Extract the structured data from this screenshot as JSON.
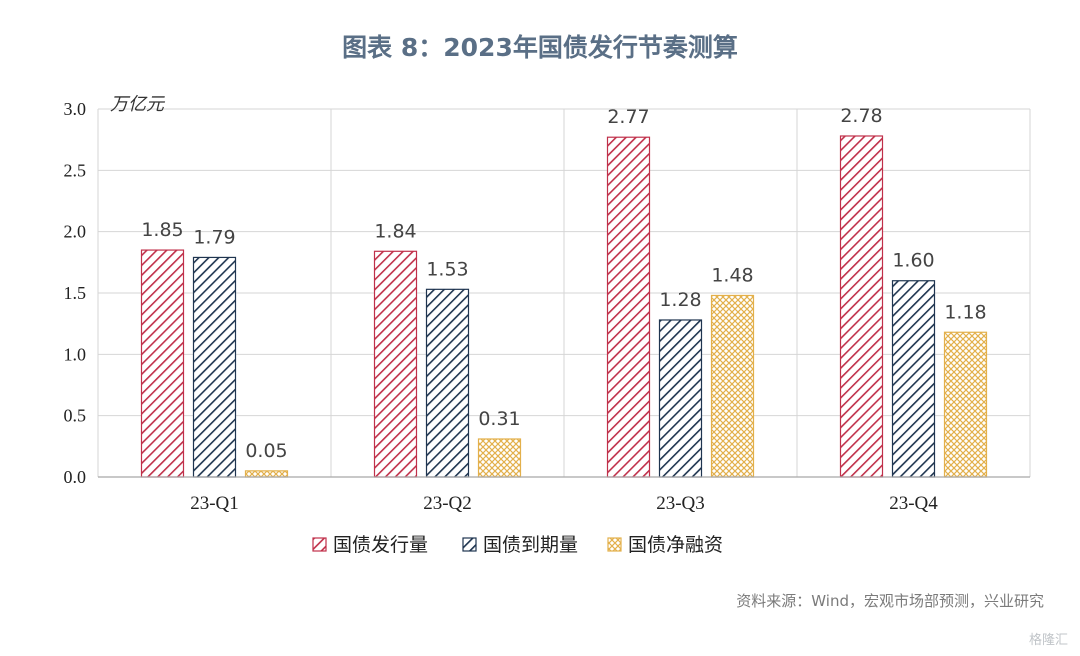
{
  "title": "图表 8：2023年国债发行节奏测算",
  "source": "资料来源：Wind，宏观市场部预测，兴业研究",
  "watermark": "格隆汇",
  "chart_data": {
    "type": "bar",
    "unit_label": "万亿元",
    "categories": [
      "23-Q1",
      "23-Q2",
      "23-Q3",
      "23-Q4"
    ],
    "series": [
      {
        "name": "国债发行量",
        "values": [
          1.85,
          1.84,
          2.77,
          2.78
        ],
        "color": "#c0304a",
        "pattern": "diagonal-stripes-red"
      },
      {
        "name": "国债到期量",
        "values": [
          1.79,
          1.53,
          1.28,
          1.6
        ],
        "color": "#1f3550",
        "pattern": "diagonal-stripes-navy"
      },
      {
        "name": "国债净融资",
        "values": [
          0.05,
          0.31,
          1.48,
          1.18
        ],
        "color": "#e3b04b",
        "pattern": "crosshatch-gold"
      }
    ],
    "y_ticks": [
      "0.0",
      "0.5",
      "1.0",
      "1.5",
      "2.0",
      "2.5",
      "3.0"
    ],
    "ylim": [
      0,
      3.0
    ],
    "grid": true,
    "legend_position": "bottom"
  }
}
